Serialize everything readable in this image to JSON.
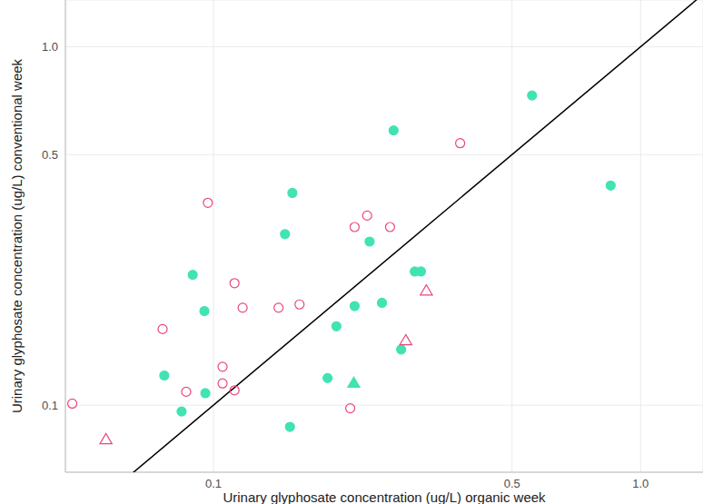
{
  "chart_data": {
    "type": "scatter",
    "log": true,
    "grid": true,
    "x_label": "Urinary glyphosate concentration (ug/L) organic week",
    "y_label": "Urinary glyphosate concentration (ug/L) conventional week",
    "xlim": [
      0.045,
      1.4
    ],
    "ylim": [
      0.065,
      1.35
    ],
    "xticks": [
      0.1,
      0.5,
      {
        "value": 1,
        "label": "1.0"
      }
    ],
    "yticks": [
      0.1,
      0.5,
      {
        "value": 1,
        "label": "1.0"
      }
    ],
    "series": [
      {
        "type": "line",
        "color": "#000000",
        "line_style": "solid",
        "points": [
          [
            0.045,
            0.045
          ],
          [
            1.4,
            1.4
          ]
        ]
      },
      {
        "type": "scatter",
        "color": "#41e3b3",
        "marker": "circle",
        "points": [
          [
            0.557,
            0.731
          ],
          [
            0.851,
            0.41
          ],
          [
            0.264,
            0.584
          ],
          [
            0.153,
            0.391
          ],
          [
            0.147,
            0.3
          ],
          [
            0.232,
            0.286
          ],
          [
            0.0894,
            0.231
          ],
          [
            0.296,
            0.236
          ],
          [
            0.306,
            0.236
          ],
          [
            0.0952,
            0.183
          ],
          [
            0.214,
            0.189
          ],
          [
            0.248,
            0.193
          ],
          [
            0.194,
            0.166
          ],
          [
            0.0767,
            0.121
          ],
          [
            0.185,
            0.119
          ],
          [
            0.275,
            0.143
          ],
          [
            0.0957,
            0.108
          ],
          [
            0.0842,
            0.096
          ],
          [
            0.151,
            0.087
          ]
        ]
      },
      {
        "type": "scatter",
        "color": "#41e3b3",
        "marker": "triangle",
        "points": [
          [
            0.213,
            0.115
          ]
        ]
      },
      {
        "type": "scatter",
        "color": "#e8477b",
        "marker": "circle-open",
        "points": [
          [
            0.0467,
            0.101
          ],
          [
            0.097,
            0.367
          ],
          [
            0.378,
            0.538
          ],
          [
            0.214,
            0.314
          ],
          [
            0.229,
            0.338
          ],
          [
            0.259,
            0.314
          ],
          [
            0.112,
            0.219
          ],
          [
            0.076,
            0.163
          ],
          [
            0.117,
            0.187
          ],
          [
            0.142,
            0.187
          ],
          [
            0.159,
            0.191
          ],
          [
            0.105,
            0.128
          ],
          [
            0.105,
            0.115
          ],
          [
            0.0863,
            0.109
          ],
          [
            0.112,
            0.11
          ],
          [
            0.209,
            0.098
          ]
        ]
      },
      {
        "type": "scatter",
        "color": "#e8477b",
        "marker": "triangle-open",
        "points": [
          [
            0.056,
            0.08
          ],
          [
            0.282,
            0.151
          ],
          [
            0.315,
            0.208
          ]
        ]
      }
    ]
  }
}
